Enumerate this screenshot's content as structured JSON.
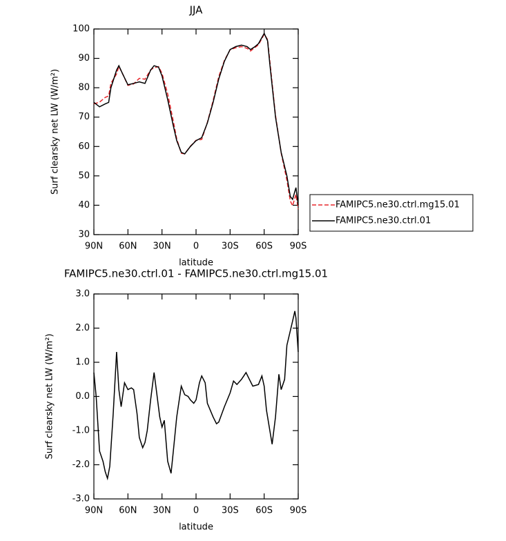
{
  "chart_data": [
    {
      "type": "line",
      "title": "JJA",
      "xlabel": "latitude",
      "ylabel": "Surf clearsky net LW (W/m²)",
      "x": [
        90,
        85,
        80,
        77,
        75,
        70,
        68,
        65,
        60,
        55,
        50,
        45,
        40,
        37,
        33,
        30,
        25,
        20,
        17,
        13,
        10,
        5,
        0,
        -5,
        -10,
        -15,
        -20,
        -25,
        -30,
        -35,
        -40,
        -45,
        -48,
        -52,
        -55,
        -60,
        -63,
        -65,
        -70,
        -75,
        -80,
        -83,
        -85,
        -88,
        -90
      ],
      "xlim": [
        90,
        -90
      ],
      "xticks": [
        {
          "value": 90,
          "label": "90N"
        },
        {
          "value": 60,
          "label": "60N"
        },
        {
          "value": 30,
          "label": "30N"
        },
        0,
        {
          "value": -30,
          "label": "30S"
        },
        {
          "value": -60,
          "label": "60S"
        },
        {
          "value": -90,
          "label": "90S"
        }
      ],
      "ylim": [
        30,
        100
      ],
      "yticks": [
        30,
        40,
        50,
        60,
        70,
        80,
        90,
        100
      ],
      "legend": "right",
      "series": [
        {
          "name": "FAMIPC5.ne30.ctrl.mg15.01",
          "color": "#e8262b",
          "dash": true,
          "values": [
            74.5,
            75.1,
            76.7,
            77.2,
            81.5,
            84.7,
            87.3,
            85,
            80.8,
            81.3,
            83.2,
            82.9,
            86.1,
            86.8,
            87.2,
            84.9,
            77.9,
            68.6,
            62.6,
            57.7,
            57.5,
            60.1,
            62.1,
            62.4,
            68.2,
            75.6,
            83.8,
            89.3,
            92.9,
            93.6,
            94,
            93.4,
            92.5,
            93.7,
            94.6,
            98.2,
            96.4,
            89,
            70.6,
            57.8,
            48.5,
            41.5,
            39.8,
            43.7,
            38.7
          ]
        },
        {
          "name": "FAMIPC5.ne30.ctrl.01",
          "color": "#000000",
          "dash": false,
          "values": [
            75,
            73.5,
            74.5,
            75,
            80,
            86,
            87.5,
            85,
            81,
            81.5,
            82,
            81.5,
            86,
            87.5,
            87,
            84,
            76,
            67,
            62,
            58,
            57.5,
            60,
            62,
            63,
            68,
            75,
            83,
            89,
            93,
            94,
            94.5,
            94,
            93,
            94,
            95,
            98.5,
            96,
            88,
            70,
            58,
            50,
            43,
            42,
            46,
            40
          ]
        }
      ]
    },
    {
      "type": "line",
      "title": "FAMIPC5.ne30.ctrl.01 - FAMIPC5.ne30.ctrl.mg15.01",
      "xlabel": "latitude",
      "ylabel": "Surf clearsky net LW (W/m²)",
      "x": [
        90,
        88,
        85,
        82,
        80,
        78,
        76,
        73,
        70,
        68,
        66,
        63,
        60,
        57,
        55,
        52,
        50,
        47,
        45,
        43,
        40,
        37,
        35,
        32,
        30,
        28,
        25,
        22,
        20,
        17,
        13,
        10,
        7,
        5,
        2,
        0,
        -3,
        -5,
        -8,
        -10,
        -15,
        -18,
        -20,
        -25,
        -30,
        -33,
        -36,
        -40,
        -44,
        -47,
        -50,
        -55,
        -58,
        -60,
        -62,
        -65,
        -67,
        -70,
        -73,
        -75,
        -78,
        -80,
        -85,
        -87,
        -88,
        -90
      ],
      "xlim": [
        90,
        -90
      ],
      "xticks": [
        {
          "value": 90,
          "label": "90N"
        },
        {
          "value": 60,
          "label": "60N"
        },
        {
          "value": 30,
          "label": "30N"
        },
        0,
        {
          "value": -30,
          "label": "30S"
        },
        {
          "value": -60,
          "label": "60S"
        },
        {
          "value": -90,
          "label": "90S"
        }
      ],
      "ylim": [
        -3,
        3
      ],
      "yticks": [
        {
          "value": -3,
          "label": "-3.0"
        },
        {
          "value": -2,
          "label": "-2.0"
        },
        {
          "value": -1,
          "label": "-1.0"
        },
        {
          "value": 0,
          "label": "0.0"
        },
        {
          "value": 1,
          "label": "1.0"
        },
        {
          "value": 2,
          "label": "2.0"
        },
        {
          "value": 3,
          "label": "3.0"
        }
      ],
      "series": [
        {
          "color": "#000000",
          "dash": false,
          "values": [
            0.7,
            0,
            -1.6,
            -1.9,
            -2.2,
            -2.4,
            -2.05,
            -0.5,
            1.3,
            0.2,
            -0.3,
            0.4,
            0.2,
            0.25,
            0.2,
            -0.5,
            -1.2,
            -1.5,
            -1.35,
            -1.0,
            -0.1,
            0.7,
            0.2,
            -0.6,
            -0.9,
            -0.7,
            -1.9,
            -2.25,
            -1.6,
            -0.6,
            0.3,
            0.05,
            0,
            -0.1,
            -0.2,
            -0.1,
            0.4,
            0.6,
            0.4,
            -0.2,
            -0.6,
            -0.8,
            -0.75,
            -0.3,
            0.1,
            0.45,
            0.35,
            0.5,
            0.7,
            0.5,
            0.3,
            0.35,
            0.6,
            0.3,
            -0.4,
            -1.0,
            -1.4,
            -0.6,
            0.65,
            0.2,
            0.5,
            1.5,
            2.2,
            2.5,
            2.3,
            1.3
          ]
        }
      ]
    }
  ]
}
